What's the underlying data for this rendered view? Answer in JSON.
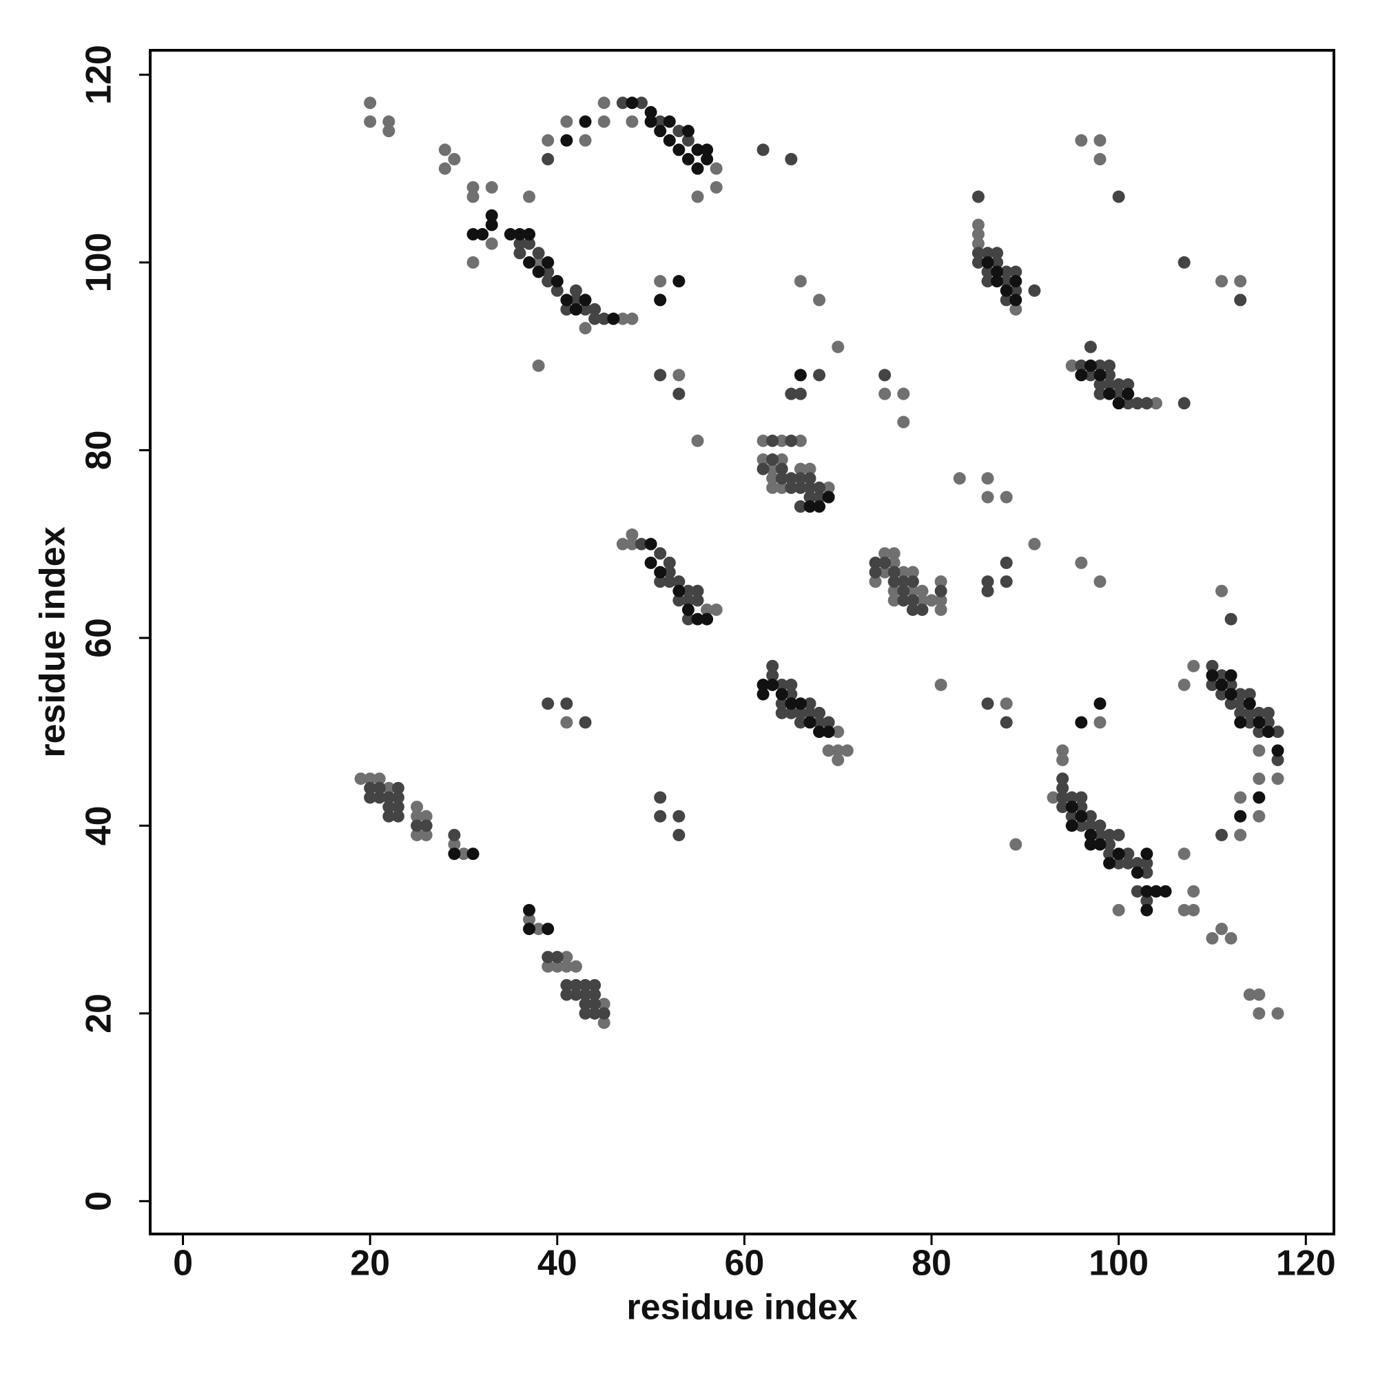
{
  "chart_data": {
    "type": "scatter",
    "xlabel": "residue index",
    "ylabel": "residue index",
    "xlim": [
      -3.5,
      123
    ],
    "ylim": [
      -3.5,
      122.6
    ],
    "xticks": [
      0,
      20,
      40,
      60,
      80,
      100,
      120
    ],
    "yticks": [
      0,
      20,
      40,
      60,
      80,
      100,
      120
    ],
    "series": [
      {
        "color": "#707070",
        "x": [
          20,
          20,
          22,
          22,
          28,
          28,
          29,
          31,
          31,
          33,
          31,
          33,
          37,
          39,
          41,
          43,
          45,
          45,
          48,
          38,
          47,
          48,
          43,
          51,
          57,
          57,
          55,
          38,
          48,
          48,
          47,
          57,
          56,
          69,
          70,
          71,
          70,
          70,
          62,
          64,
          66,
          62,
          64,
          63,
          63,
          64,
          63,
          66,
          67,
          69,
          66,
          74,
          75,
          75,
          76,
          76,
          76,
          76,
          77,
          78,
          78,
          79,
          79,
          81,
          81,
          81,
          80,
          70,
          66,
          68,
          55,
          53,
          75,
          77,
          77,
          83,
          86,
          86,
          88,
          91,
          96,
          98,
          81,
          88,
          98,
          41,
          89,
          85,
          85,
          85,
          89,
          96,
          98,
          98,
          111,
          113,
          95,
          104,
          94,
          94,
          93,
          100,
          107,
          107,
          108,
          108,
          107,
          108,
          117,
          115,
          115,
          115,
          113,
          113,
          111,
          110,
          111,
          112,
          114,
          115,
          115,
          117,
          101,
          19,
          20,
          21,
          22,
          25,
          25,
          25,
          26,
          26,
          29,
          30,
          37,
          38,
          39,
          40,
          41,
          41,
          42,
          45,
          45
        ],
        "values": [
          117,
          115,
          115,
          114,
          112,
          110,
          111,
          108,
          107,
          108,
          100,
          102,
          107,
          113,
          115,
          113,
          117,
          115,
          115,
          89,
          94,
          94,
          93,
          98,
          108,
          110,
          107,
          100,
          70,
          71,
          70,
          63,
          63,
          48,
          48,
          48,
          47,
          50,
          81,
          81,
          81,
          79,
          79,
          78,
          77,
          76,
          76,
          78,
          78,
          76,
          74,
          66,
          69,
          67,
          69,
          68,
          65,
          64,
          67,
          67,
          65,
          65,
          64,
          66,
          64,
          63,
          64,
          91,
          98,
          96,
          81,
          88,
          86,
          86,
          83,
          77,
          77,
          75,
          75,
          70,
          68,
          66,
          55,
          53,
          51,
          51,
          38,
          104,
          103,
          102,
          95,
          113,
          113,
          111,
          98,
          98,
          89,
          85,
          48,
          47,
          43,
          31,
          37,
          31,
          33,
          31,
          55,
          57,
          45,
          48,
          45,
          41,
          43,
          39,
          65,
          28,
          29,
          28,
          22,
          22,
          20,
          20,
          37,
          45,
          45,
          45,
          44,
          42,
          41,
          39,
          41,
          39,
          38,
          37,
          30,
          29,
          25,
          25,
          26,
          25,
          25,
          21,
          19
        ]
      },
      {
        "color": "#444444",
        "x": [
          39,
          47,
          49,
          51,
          53,
          54,
          36,
          36,
          37,
          38,
          39,
          39,
          40,
          41,
          42,
          43,
          44,
          44,
          45,
          42,
          62,
          65,
          51,
          52,
          52,
          52,
          53,
          53,
          54,
          54,
          55,
          55,
          54,
          49,
          51,
          63,
          63,
          64,
          64,
          65,
          65,
          66,
          67,
          67,
          68,
          68,
          69,
          66,
          64,
          65,
          63,
          65,
          63,
          64,
          64,
          65,
          65,
          66,
          66,
          67,
          67,
          67,
          68,
          68,
          66,
          62,
          74,
          74,
          75,
          76,
          76,
          77,
          77,
          77,
          78,
          78,
          78,
          79,
          81,
          66,
          65,
          68,
          53,
          51,
          88,
          88,
          86,
          86,
          75,
          85,
          85,
          85,
          86,
          86,
          86,
          87,
          87,
          88,
          88,
          88,
          89,
          89,
          91,
          100,
          107,
          113,
          96,
          97,
          97,
          98,
          98,
          98,
          99,
          99,
          99,
          100,
          100,
          101,
          101,
          102,
          103,
          107,
          94,
          94,
          94,
          94,
          95,
          95,
          96,
          96,
          96,
          97,
          97,
          98,
          98,
          99,
          99,
          99,
          100,
          100,
          101,
          101,
          102,
          102,
          103,
          103,
          103,
          111,
          111,
          112,
          112,
          113,
          113,
          113,
          114,
          114,
          114,
          115,
          115,
          116,
          116,
          117,
          117,
          110,
          110,
          111,
          112,
          20,
          20,
          21,
          21,
          22,
          22,
          22,
          23,
          23,
          23,
          23,
          26,
          25,
          29,
          39,
          40,
          41,
          41,
          42,
          42,
          43,
          43,
          43,
          43,
          44,
          44,
          44,
          44,
          45,
          41,
          43,
          39,
          51,
          51,
          53,
          53,
          86,
          88
        ],
        "values": [
          111,
          117,
          117,
          115,
          114,
          113,
          101,
          102,
          102,
          101,
          99,
          98,
          97,
          95,
          97,
          95,
          94,
          95,
          94,
          96,
          112,
          111,
          69,
          68,
          67,
          66,
          66,
          64,
          65,
          64,
          65,
          64,
          62,
          70,
          66,
          57,
          56,
          55,
          53,
          55,
          54,
          52,
          53,
          52,
          52,
          51,
          51,
          51,
          52,
          52,
          81,
          81,
          79,
          78,
          77,
          77,
          76,
          77,
          76,
          77,
          76,
          75,
          76,
          75,
          74,
          78,
          68,
          67,
          68,
          67,
          66,
          66,
          65,
          64,
          66,
          64,
          63,
          63,
          65,
          86,
          86,
          88,
          86,
          88,
          68,
          66,
          66,
          65,
          88,
          107,
          101,
          100,
          101,
          99,
          98,
          101,
          100,
          99,
          98,
          96,
          99,
          97,
          97,
          107,
          100,
          96,
          89,
          91,
          88,
          89,
          87,
          86,
          89,
          88,
          87,
          87,
          86,
          87,
          85,
          85,
          85,
          85,
          45,
          44,
          43,
          42,
          43,
          41,
          43,
          42,
          40,
          41,
          40,
          40,
          39,
          39,
          38,
          37,
          39,
          36,
          37,
          36,
          36,
          33,
          36,
          35,
          32,
          56,
          54,
          55,
          53,
          54,
          53,
          52,
          54,
          52,
          51,
          52,
          50,
          52,
          51,
          50,
          47,
          57,
          55,
          39,
          62,
          44,
          43,
          44,
          43,
          43,
          42,
          41,
          44,
          43,
          42,
          41,
          40,
          40,
          39,
          26,
          26,
          23,
          22,
          23,
          22,
          23,
          22,
          21,
          20,
          23,
          22,
          21,
          20,
          20,
          53,
          51,
          53,
          43,
          41,
          41,
          39,
          53,
          51
        ]
      },
      {
        "color": "#111111",
        "x": [
          41,
          43,
          48,
          50,
          50,
          51,
          52,
          52,
          53,
          54,
          54,
          55,
          55,
          56,
          56,
          31,
          32,
          33,
          33,
          35,
          36,
          37,
          37,
          38,
          39,
          40,
          41,
          42,
          43,
          46,
          51,
          53,
          50,
          50,
          51,
          53,
          54,
          55,
          56,
          62,
          62,
          63,
          64,
          65,
          66,
          67,
          68,
          69,
          67,
          69,
          68,
          86,
          87,
          87,
          88,
          89,
          89,
          96,
          97,
          98,
          99,
          100,
          101,
          95,
          95,
          96,
          97,
          97,
          98,
          99,
          100,
          102,
          103,
          103,
          103,
          104,
          105,
          96,
          98,
          110,
          111,
          112,
          112,
          113,
          114,
          115,
          116,
          117,
          115,
          113,
          29,
          31,
          37,
          37,
          39,
          66
        ],
        "values": [
          113,
          115,
          117,
          116,
          115,
          114,
          113,
          115,
          112,
          111,
          114,
          112,
          110,
          111,
          112,
          103,
          103,
          104,
          105,
          103,
          103,
          103,
          100,
          99,
          100,
          98,
          96,
          95,
          96,
          94,
          96,
          98,
          70,
          68,
          67,
          65,
          63,
          62,
          62,
          55,
          54,
          55,
          54,
          53,
          53,
          51,
          50,
          50,
          74,
          75,
          74,
          100,
          99,
          98,
          97,
          96,
          98,
          88,
          89,
          88,
          86,
          85,
          86,
          42,
          40,
          41,
          39,
          38,
          38,
          36,
          37,
          35,
          37,
          33,
          31,
          33,
          33,
          51,
          53,
          56,
          55,
          56,
          54,
          51,
          53,
          51,
          50,
          48,
          43,
          41,
          37,
          37,
          31,
          29,
          29,
          88
        ]
      }
    ]
  }
}
